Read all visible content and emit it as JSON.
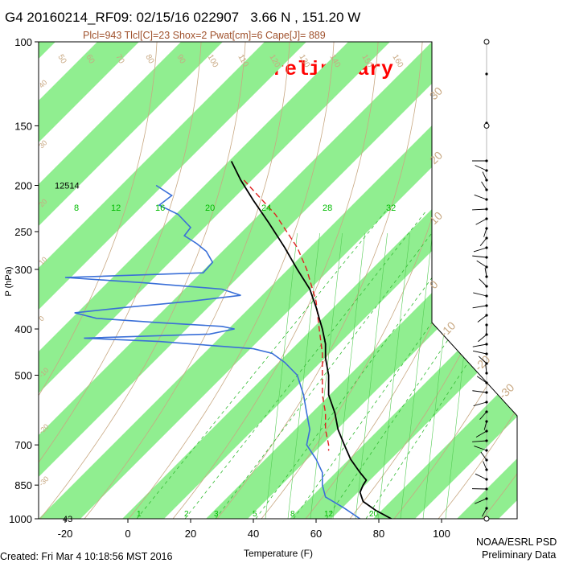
{
  "header": {
    "title": "G4 20160214_RF09: 02/15/16 022907   3.66 N , 151.20 W",
    "params": "Plcl=943 Tlcl[C]=23 Shox=2 Pwat[cm]=6 Cape[J]= 889",
    "stamp": "Preliminary"
  },
  "footer": {
    "created": "Created: Fri Mar  4 10:18:56 MST 2016",
    "org": "NOAA/ESRL PSD",
    "status": "Preliminary Data"
  },
  "colors": {
    "band": "#90ee90",
    "temperature": "#000000",
    "dewpoint": "#3a6fd8",
    "parcel": "#e02020",
    "dry_adiabat": "#c8a882",
    "moist_adiabat": "#55cc55",
    "mixing_ratio": "#33bb33"
  },
  "chart_data": {
    "type": "skew-t",
    "xlabel": "Temperature (F)",
    "ylabel": "P (hPa)",
    "x_ticks": [
      -20,
      0,
      20,
      40,
      60,
      80,
      100
    ],
    "y_ticks": [
      100,
      150,
      200,
      250,
      300,
      400,
      500,
      700,
      850,
      1000
    ],
    "y_scale": "log",
    "height_labels": [
      {
        "p": 200,
        "text": "12514"
      },
      {
        "p": 1000,
        "text": "43"
      }
    ],
    "mixing_ratio_top_labels": [
      "8",
      "12",
      "16",
      "20",
      "24",
      "28",
      "32"
    ],
    "mixing_ratio_bottom_labels": [
      "1",
      "2",
      "3",
      "5",
      "8",
      "12",
      "20"
    ],
    "dry_adiabat_labels": [
      "50",
      "60",
      "70",
      "80",
      "90",
      "100",
      "110",
      "120",
      "130",
      "140",
      "150",
      "160"
    ],
    "isotherm_labels": [
      "-30",
      "-20",
      "-10",
      "0",
      "10",
      "20",
      "30"
    ],
    "left_band_labels": [
      "40",
      "30",
      "20",
      "10",
      "0",
      "-10",
      "-20",
      "-30"
    ],
    "temperature_profile": [
      {
        "p": 178,
        "t": 33
      },
      {
        "p": 195,
        "t": 36
      },
      {
        "p": 215,
        "t": 40
      },
      {
        "p": 240,
        "t": 45
      },
      {
        "p": 270,
        "t": 50
      },
      {
        "p": 300,
        "t": 54
      },
      {
        "p": 330,
        "t": 58
      },
      {
        "p": 360,
        "t": 60
      },
      {
        "p": 380,
        "t": 61
      },
      {
        "p": 400,
        "t": 62
      },
      {
        "p": 430,
        "t": 63
      },
      {
        "p": 460,
        "t": 63
      },
      {
        "p": 500,
        "t": 64
      },
      {
        "p": 550,
        "t": 64
      },
      {
        "p": 600,
        "t": 66
      },
      {
        "p": 650,
        "t": 67
      },
      {
        "p": 700,
        "t": 69
      },
      {
        "p": 750,
        "t": 71
      },
      {
        "p": 800,
        "t": 74
      },
      {
        "p": 830,
        "t": 76
      },
      {
        "p": 850,
        "t": 75
      },
      {
        "p": 880,
        "t": 74
      },
      {
        "p": 920,
        "t": 75
      },
      {
        "p": 960,
        "t": 79
      },
      {
        "p": 1000,
        "t": 84
      }
    ],
    "parcel_profile": [
      {
        "p": 195,
        "t": 37
      },
      {
        "p": 230,
        "t": 47
      },
      {
        "p": 270,
        "t": 54
      },
      {
        "p": 300,
        "t": 57
      },
      {
        "p": 350,
        "t": 60
      },
      {
        "p": 400,
        "t": 61
      },
      {
        "p": 450,
        "t": 62
      },
      {
        "p": 500,
        "t": 62
      },
      {
        "p": 550,
        "t": 62
      },
      {
        "p": 600,
        "t": 63
      },
      {
        "p": 650,
        "t": 63
      },
      {
        "p": 700,
        "t": 64
      },
      {
        "p": 720,
        "t": 64
      }
    ],
    "dewpoint_profile": [
      {
        "p": 200,
        "t": 9
      },
      {
        "p": 210,
        "t": 14
      },
      {
        "p": 220,
        "t": 10
      },
      {
        "p": 230,
        "t": 16
      },
      {
        "p": 245,
        "t": 20
      },
      {
        "p": 255,
        "t": 18
      },
      {
        "p": 265,
        "t": 22
      },
      {
        "p": 275,
        "t": 25
      },
      {
        "p": 290,
        "t": 27
      },
      {
        "p": 305,
        "t": 24
      },
      {
        "p": 312,
        "t": -20
      },
      {
        "p": 320,
        "t": 5
      },
      {
        "p": 330,
        "t": 30
      },
      {
        "p": 340,
        "t": 36
      },
      {
        "p": 350,
        "t": 20
      },
      {
        "p": 355,
        "t": 10
      },
      {
        "p": 360,
        "t": 0
      },
      {
        "p": 370,
        "t": -17
      },
      {
        "p": 380,
        "t": -10
      },
      {
        "p": 388,
        "t": 10
      },
      {
        "p": 395,
        "t": 30
      },
      {
        "p": 400,
        "t": 34
      },
      {
        "p": 410,
        "t": 26
      },
      {
        "p": 418,
        "t": -14
      },
      {
        "p": 425,
        "t": 10
      },
      {
        "p": 440,
        "t": 40
      },
      {
        "p": 450,
        "t": 46
      },
      {
        "p": 470,
        "t": 50
      },
      {
        "p": 500,
        "t": 54
      },
      {
        "p": 550,
        "t": 56
      },
      {
        "p": 600,
        "t": 57
      },
      {
        "p": 650,
        "t": 58
      },
      {
        "p": 700,
        "t": 57
      },
      {
        "p": 750,
        "t": 60
      },
      {
        "p": 800,
        "t": 62
      },
      {
        "p": 850,
        "t": 62
      },
      {
        "p": 900,
        "t": 63
      },
      {
        "p": 950,
        "t": 69
      },
      {
        "p": 1000,
        "t": 74
      }
    ]
  }
}
